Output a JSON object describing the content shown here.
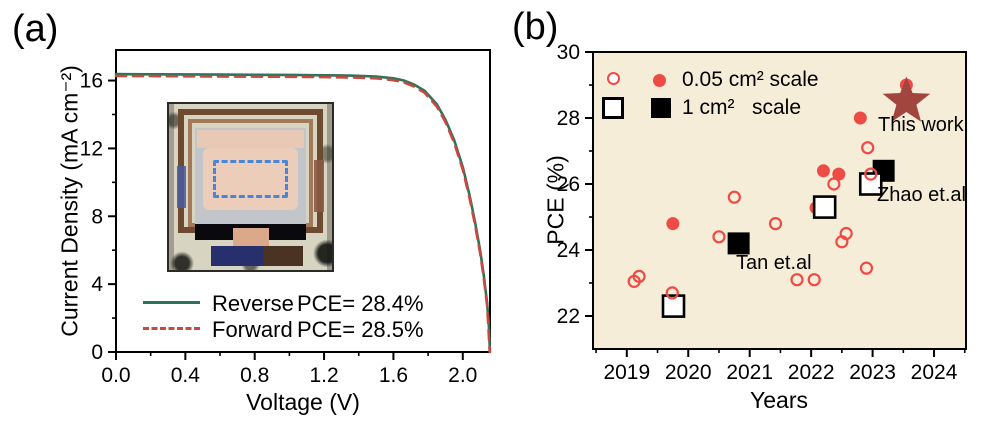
{
  "figure": {
    "panel_a_label": "(a)",
    "panel_b_label": "(b)"
  },
  "colors": {
    "reverse_green": "#2e7258",
    "forward_red": "#c44a42",
    "scatter_red": "#ef4b45",
    "star_red": "#a3453f",
    "panel_b_bg": "#f6edd8",
    "axis_black": "#000000",
    "inset_dash_blue": "#4a86d8"
  },
  "chart_data": [
    {
      "type": "line",
      "title": "",
      "xlabel": "Voltage (V)",
      "ylabel": "Current Density (mA cm⁻²)",
      "xlim": [
        0,
        2.157
      ],
      "ylim": [
        0,
        17.8
      ],
      "grid": false,
      "xticks": {
        "values": [
          0,
          0.4,
          0.8,
          1.2,
          1.6,
          2.0
        ],
        "labels": [
          "0.0",
          "0.4",
          "0.8",
          "1.2",
          "1.6",
          "2.0"
        ]
      },
      "yticks": {
        "values": [
          0,
          4,
          8,
          12,
          16
        ],
        "labels": [
          "0",
          "4",
          "8",
          "12",
          "16"
        ]
      },
      "minor_xticks": [
        0.2,
        0.6,
        1.0,
        1.4,
        1.8
      ],
      "minor_yticks": [
        2,
        6,
        10,
        14
      ],
      "series": [
        {
          "name": "Reverse",
          "pce_label": "PCE= 28.4%",
          "style": "solid",
          "color_key": "reverse_green",
          "points": [
            [
              0,
              16.38
            ],
            [
              0.2,
              16.37
            ],
            [
              0.4,
              16.36
            ],
            [
              0.6,
              16.35
            ],
            [
              0.8,
              16.34
            ],
            [
              1.0,
              16.33
            ],
            [
              1.2,
              16.31
            ],
            [
              1.35,
              16.29
            ],
            [
              1.5,
              16.24
            ],
            [
              1.6,
              16.13
            ],
            [
              1.66,
              16.0
            ],
            [
              1.72,
              15.76
            ],
            [
              1.78,
              15.4
            ],
            [
              1.85,
              14.6
            ],
            [
              1.9,
              13.7
            ],
            [
              1.95,
              12.5
            ],
            [
              2.0,
              10.9
            ],
            [
              2.04,
              9.2
            ],
            [
              2.07,
              7.7
            ],
            [
              2.1,
              6.0
            ],
            [
              2.12,
              4.6
            ],
            [
              2.14,
              2.9
            ],
            [
              2.15,
              1.6
            ],
            [
              2.157,
              0
            ]
          ]
        },
        {
          "name": "Forward",
          "pce_label": "PCE= 28.5%",
          "style": "dashed",
          "color_key": "forward_red",
          "points": [
            [
              0,
              16.27
            ],
            [
              0.2,
              16.26
            ],
            [
              0.4,
              16.25
            ],
            [
              0.6,
              16.24
            ],
            [
              0.8,
              16.23
            ],
            [
              1.0,
              16.22
            ],
            [
              1.2,
              16.2
            ],
            [
              1.35,
              16.18
            ],
            [
              1.5,
              16.13
            ],
            [
              1.6,
              16.02
            ],
            [
              1.66,
              15.89
            ],
            [
              1.72,
              15.65
            ],
            [
              1.78,
              15.28
            ],
            [
              1.85,
              14.47
            ],
            [
              1.9,
              13.56
            ],
            [
              1.95,
              12.35
            ],
            [
              2.0,
              10.74
            ],
            [
              2.04,
              9.04
            ],
            [
              2.07,
              7.54
            ],
            [
              2.1,
              5.84
            ],
            [
              2.12,
              4.44
            ],
            [
              2.14,
              2.74
            ],
            [
              2.148,
              1.45
            ],
            [
              2.155,
              0
            ]
          ]
        }
      ]
    },
    {
      "type": "scatter",
      "title": "",
      "xlabel": "Years",
      "ylabel": "PCE (%)",
      "xlim": [
        2018.45,
        2024.52
      ],
      "ylim": [
        21,
        30
      ],
      "grid": false,
      "xticks": {
        "values": [
          2019,
          2020,
          2021,
          2022,
          2023,
          2024
        ],
        "labels": [
          "2019",
          "2020",
          "2021",
          "2022",
          "2023",
          "2024"
        ]
      },
      "yticks": {
        "values": [
          22,
          24,
          26,
          28,
          30
        ],
        "labels": [
          "22",
          "24",
          "26",
          "28",
          "30"
        ]
      },
      "minor_xticks": [
        2018.5,
        2019.5,
        2020.5,
        2021.5,
        2022.5,
        2023.5,
        2024.5
      ],
      "minor_yticks": [
        23,
        25,
        27,
        29
      ],
      "legend": [
        {
          "label": "0.05 cm² scale"
        },
        {
          "label": "1 cm²   scale"
        }
      ],
      "series": [
        {
          "name": "hidden-filled-circle-0.05cm2",
          "marker": "filled-circle",
          "points": [
            [
              2022.08,
              25.28
            ]
          ]
        },
        {
          "name": "filled-black-square-1cm2",
          "marker": "filled-square",
          "points": [
            [
              2020.82,
              24.2
            ],
            [
              2023.18,
              26.4
            ]
          ]
        },
        {
          "name": "open-black-square-1cm2",
          "marker": "open-square",
          "points": [
            [
              2019.76,
              22.3
            ],
            [
              2022.22,
              25.3
            ],
            [
              2022.97,
              26.0
            ]
          ]
        },
        {
          "name": "open-red-circle-0.05cm2",
          "marker": "open-circle",
          "points": [
            [
              2019.12,
              23.05
            ],
            [
              2019.2,
              23.2
            ],
            [
              2019.74,
              22.7
            ],
            [
              2020.5,
              24.4
            ],
            [
              2020.75,
              25.6
            ],
            [
              2021.42,
              24.8
            ],
            [
              2021.77,
              23.1
            ],
            [
              2022.05,
              23.1
            ],
            [
              2022.37,
              26.0
            ],
            [
              2022.5,
              24.25
            ],
            [
              2022.57,
              24.5
            ],
            [
              2022.9,
              23.45
            ],
            [
              2022.92,
              27.1
            ],
            [
              2022.97,
              26.3
            ]
          ]
        },
        {
          "name": "filled-red-circle-0.05cm2",
          "marker": "filled-circle",
          "points": [
            [
              2019.75,
              24.8
            ],
            [
              2022.2,
              26.4
            ],
            [
              2022.45,
              26.3
            ],
            [
              2022.8,
              28.0
            ],
            [
              2023.55,
              29.0
            ]
          ]
        },
        {
          "name": "this-work-star",
          "marker": "star",
          "points": [
            [
              2023.55,
              28.5
            ]
          ]
        }
      ],
      "annotations": [
        {
          "text": "Tan et.al"
        },
        {
          "text": "Zhao et.al"
        },
        {
          "text": "This work"
        }
      ]
    }
  ]
}
